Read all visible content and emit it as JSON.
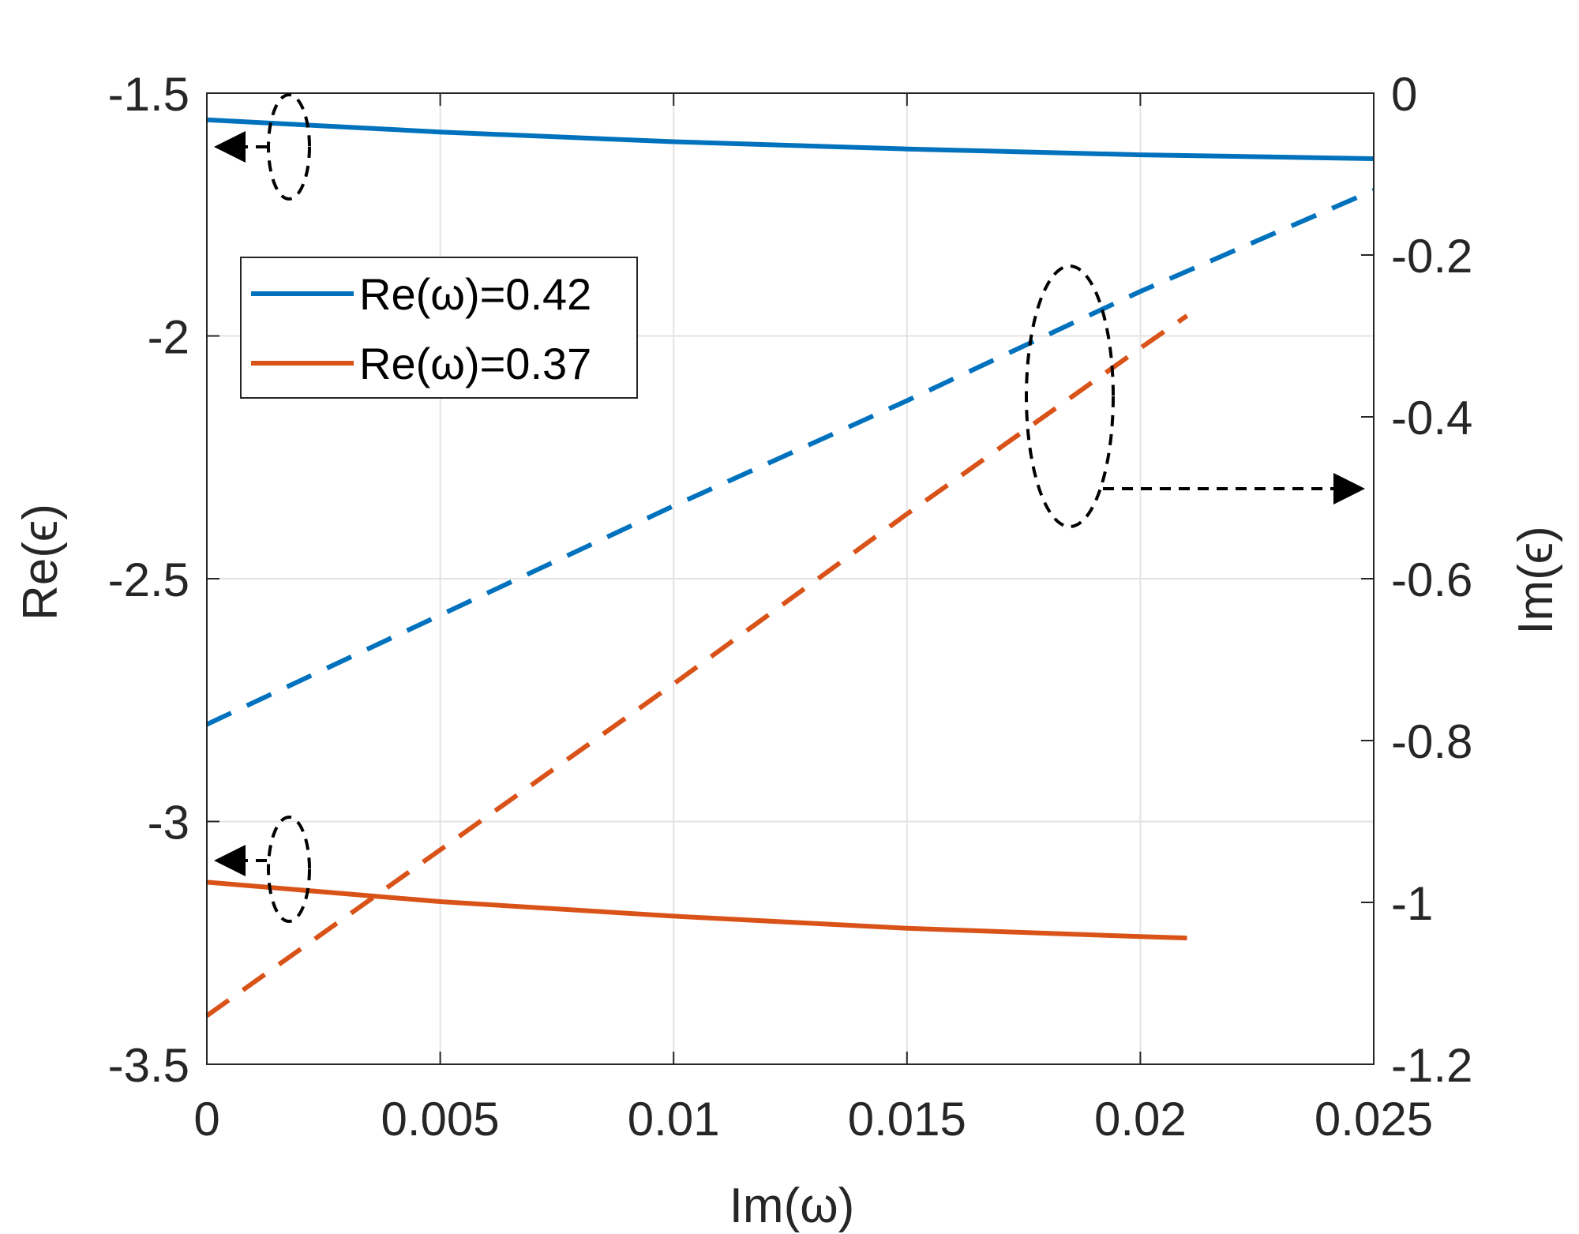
{
  "chart_data": {
    "type": "line",
    "title": "",
    "xlabel": "Im(ω)",
    "ylabel_left": "Re(ϵ)",
    "ylabel_right": "Im(ϵ)",
    "xlim": [
      0,
      0.025
    ],
    "ylim_left": [
      -3.5,
      -1.5
    ],
    "ylim_right": [
      -1.2,
      0
    ],
    "grid": true,
    "x_ticks": [
      "0",
      "0.005",
      "0.01",
      "0.015",
      "0.02",
      "0.025"
    ],
    "y_left_ticks": [
      "-1.5",
      "-2",
      "-2.5",
      "-3",
      "-3.5"
    ],
    "y_right_ticks": [
      "0",
      "-0.2",
      "-0.4",
      "-0.6",
      "-0.8",
      "-1",
      "-1.2"
    ],
    "legend": {
      "position": "upper-left",
      "entries": [
        "Re(ω)=0.42",
        "Re(ω)=0.37"
      ]
    },
    "series": [
      {
        "name": "Re(ω)=0.42",
        "color": "#0072BD",
        "axis": "left",
        "style": "solid",
        "x": [
          0,
          0.005,
          0.01,
          0.015,
          0.02,
          0.025
        ],
        "y": [
          -1.555,
          -1.58,
          -1.6,
          -1.615,
          -1.627,
          -1.635
        ]
      },
      {
        "name": "Re(ω)=0.42",
        "color": "#0072BD",
        "axis": "right",
        "style": "dashed",
        "x": [
          0,
          0.005,
          0.01,
          0.015,
          0.02,
          0.025
        ],
        "y": [
          -0.78,
          -0.645,
          -0.51,
          -0.38,
          -0.245,
          -0.12
        ]
      },
      {
        "name": "Re(ω)=0.37",
        "color": "#D95319",
        "axis": "left",
        "style": "solid",
        "x": [
          0,
          0.005,
          0.01,
          0.015,
          0.02,
          0.021
        ],
        "y": [
          -3.125,
          -3.165,
          -3.195,
          -3.22,
          -3.237,
          -3.24
        ]
      },
      {
        "name": "Re(ω)=0.37",
        "color": "#D95319",
        "axis": "right",
        "style": "dashed",
        "x": [
          0,
          0.005,
          0.01,
          0.015,
          0.02,
          0.021
        ],
        "y": [
          -1.14,
          -0.935,
          -0.73,
          -0.52,
          -0.315,
          -0.275
        ]
      }
    ]
  }
}
